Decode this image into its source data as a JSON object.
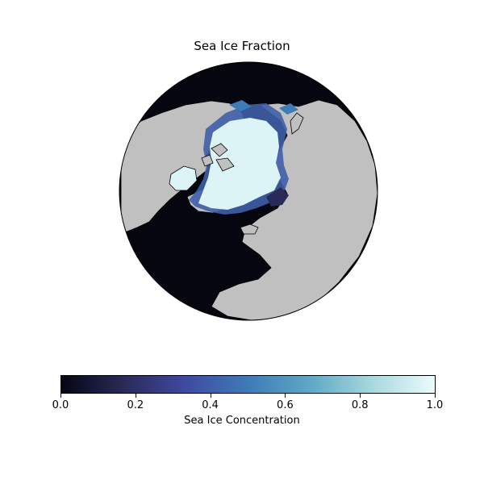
{
  "map": {
    "title": "Sea Ice Fraction",
    "projection": "orthographic-north-polar",
    "colors": {
      "ocean_no_ice": "#05060f",
      "land": "#c0c0c0",
      "coastline": "#000000",
      "full_ice": "#dcf4f5",
      "ice_edge_mid": "#3f5fa8"
    },
    "colorbar": {
      "label": "Sea Ice Concentration",
      "colormap": "ice",
      "stops": [
        "#040613",
        "#2a2a59",
        "#3f4aa0",
        "#3f7bb6",
        "#5fa8c6",
        "#a8d8de",
        "#ebfcfc"
      ],
      "ticks": [
        "0.0",
        "0.2",
        "0.4",
        "0.6",
        "0.8",
        "1.0"
      ]
    }
  }
}
